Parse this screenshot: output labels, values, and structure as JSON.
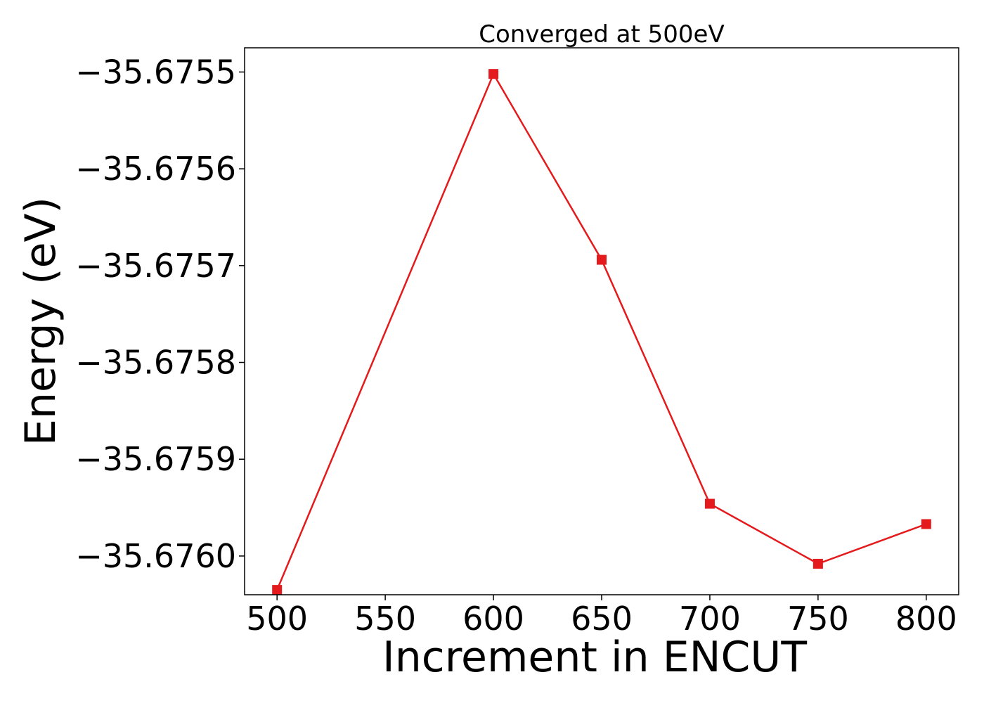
{
  "chart_data": {
    "type": "line",
    "title": "Converged at 500eV",
    "xlabel": "Increment in ENCUT",
    "ylabel": "Energy (eV)",
    "xlim": [
      485,
      815
    ],
    "ylim": [
      -35.67604,
      -35.675475
    ],
    "x_ticks": [
      500,
      550,
      600,
      650,
      700,
      750,
      800
    ],
    "x_tick_labels": [
      "500",
      "550",
      "600",
      "650",
      "700",
      "750",
      "800"
    ],
    "y_ticks": [
      -35.6755,
      -35.6756,
      -35.6757,
      -35.6758,
      -35.6759,
      -35.676
    ],
    "y_tick_labels": [
      "−35.6755",
      "−35.6756",
      "−35.6757",
      "−35.6758",
      "−35.6759",
      "−35.6760"
    ],
    "grid": false,
    "legend": "none",
    "series": [
      {
        "color": "#e41a1c",
        "marker": "square",
        "x": [
          500,
          600,
          650,
          700,
          750,
          800
        ],
        "y": [
          -35.676035,
          -35.675502,
          -35.675694,
          -35.675946,
          -35.676008,
          -35.675967
        ]
      }
    ]
  }
}
